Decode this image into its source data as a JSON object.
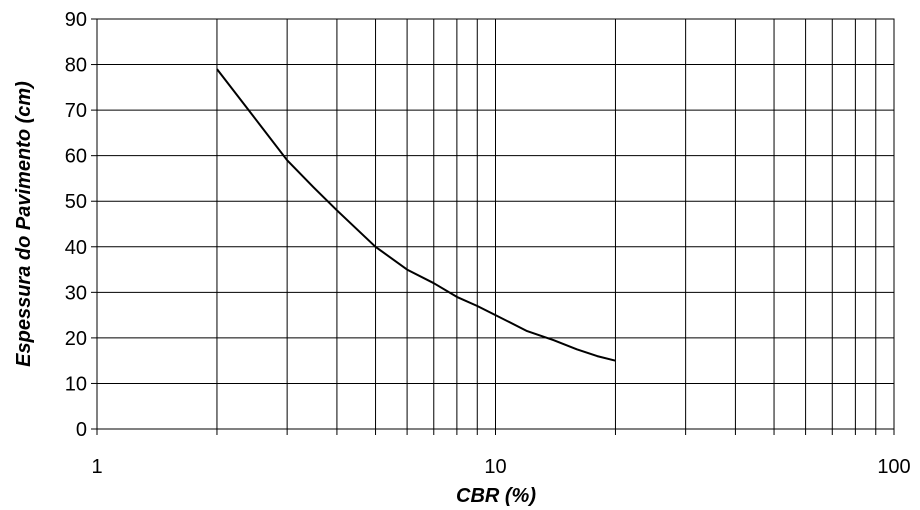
{
  "chart_data": {
    "type": "line",
    "title": "",
    "xlabel": "CBR (%)",
    "ylabel": "Espessura do Pavimento (cm)",
    "x_scale": "log",
    "xlim": [
      1,
      100
    ],
    "ylim": [
      0,
      90
    ],
    "x_ticks": [
      "1",
      "10",
      "100"
    ],
    "y_ticks": [
      "0",
      "10",
      "20",
      "30",
      "40",
      "50",
      "60",
      "70",
      "80",
      "90"
    ],
    "grid": true,
    "legend": "none",
    "line_color": "#000000",
    "series": [
      {
        "x": [
          2,
          2.5,
          3,
          3.5,
          4,
          5,
          6,
          7,
          8,
          9,
          10,
          12,
          14,
          16,
          18,
          20
        ],
        "y": [
          79,
          68,
          59,
          53,
          48,
          40,
          35,
          32,
          29,
          27,
          25,
          21.5,
          19.5,
          17.5,
          16,
          15
        ]
      }
    ]
  }
}
